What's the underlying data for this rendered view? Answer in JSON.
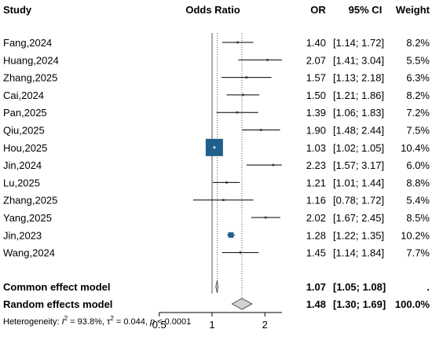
{
  "chart_data": {
    "type": "forest",
    "headers": {
      "study": "Study",
      "plot": "Odds Ratio",
      "or": "OR",
      "ci": "95% CI",
      "weight": "Weight"
    },
    "x_axis": {
      "scale": "log",
      "ticks": [
        0.5,
        1,
        2
      ],
      "tick_labels": [
        "0.5",
        "1",
        "2"
      ],
      "range": [
        0.5,
        2.5
      ]
    },
    "reference_line": 1,
    "studies": [
      {
        "study": "Fang,2024",
        "or": 1.4,
        "lower": 1.14,
        "upper": 1.72,
        "or_text": "1.40",
        "ci_text": "[1.14; 1.72]",
        "weight": 8.2,
        "weight_text": "8.2%"
      },
      {
        "study": "Huang,2024",
        "or": 2.07,
        "lower": 1.41,
        "upper": 3.04,
        "or_text": "2.07",
        "ci_text": "[1.41; 3.04]",
        "weight": 5.5,
        "weight_text": "5.5%"
      },
      {
        "study": "Zhang,2025",
        "or": 1.57,
        "lower": 1.13,
        "upper": 2.18,
        "or_text": "1.57",
        "ci_text": "[1.13; 2.18]",
        "weight": 6.3,
        "weight_text": "6.3%"
      },
      {
        "study": "Cai,2024",
        "or": 1.5,
        "lower": 1.21,
        "upper": 1.86,
        "or_text": "1.50",
        "ci_text": "[1.21; 1.86]",
        "weight": 8.2,
        "weight_text": "8.2%"
      },
      {
        "study": "Pan,2025",
        "or": 1.39,
        "lower": 1.06,
        "upper": 1.83,
        "or_text": "1.39",
        "ci_text": "[1.06; 1.83]",
        "weight": 7.2,
        "weight_text": "7.2%"
      },
      {
        "study": "Qiu,2025",
        "or": 1.9,
        "lower": 1.48,
        "upper": 2.44,
        "or_text": "1.90",
        "ci_text": "[1.48; 2.44]",
        "weight": 7.5,
        "weight_text": "7.5%"
      },
      {
        "study": "Hou,2025",
        "or": 1.03,
        "lower": 1.02,
        "upper": 1.05,
        "or_text": "1.03",
        "ci_text": "[1.02; 1.05]",
        "weight": 10.4,
        "weight_text": "10.4%"
      },
      {
        "study": "Jin,2024",
        "or": 2.23,
        "lower": 1.57,
        "upper": 3.17,
        "or_text": "2.23",
        "ci_text": "[1.57; 3.17]",
        "weight": 6.0,
        "weight_text": "6.0%"
      },
      {
        "study": "Lu,2025",
        "or": 1.21,
        "lower": 1.01,
        "upper": 1.44,
        "or_text": "1.21",
        "ci_text": "[1.01; 1.44]",
        "weight": 8.8,
        "weight_text": "8.8%"
      },
      {
        "study": "Zhang,2025",
        "or": 1.16,
        "lower": 0.78,
        "upper": 1.72,
        "or_text": "1.16",
        "ci_text": "[0.78; 1.72]",
        "weight": 5.4,
        "weight_text": "5.4%"
      },
      {
        "study": "Yang,2025",
        "or": 2.02,
        "lower": 1.67,
        "upper": 2.45,
        "or_text": "2.02",
        "ci_text": "[1.67; 2.45]",
        "weight": 8.5,
        "weight_text": "8.5%"
      },
      {
        "study": "Jin,2023",
        "or": 1.28,
        "lower": 1.22,
        "upper": 1.35,
        "or_text": "1.28",
        "ci_text": "[1.22; 1.35]",
        "weight": 10.2,
        "weight_text": "10.2%"
      },
      {
        "study": "Wang,2024",
        "or": 1.45,
        "lower": 1.14,
        "upper": 1.84,
        "or_text": "1.45",
        "ci_text": "[1.14; 1.84]",
        "weight": 7.7,
        "weight_text": "7.7%"
      }
    ],
    "summaries": [
      {
        "label": "Common effect model",
        "or": 1.07,
        "lower": 1.05,
        "upper": 1.08,
        "or_text": "1.07",
        "ci_text": "[1.05; 1.08]",
        "weight_text": "."
      },
      {
        "label": "Random effects model",
        "or": 1.48,
        "lower": 1.3,
        "upper": 1.69,
        "or_text": "1.48",
        "ci_text": "[1.30; 1.69]",
        "weight_text": "100.0%"
      }
    ],
    "heterogeneity": {
      "prefix": "Heterogeneity: ",
      "i2_symbol": "I",
      "i2_exp": "2",
      "i2_value": " = 93.8%, ",
      "tau_symbol": "τ",
      "tau_exp": "2",
      "tau_value": " = 0.044, ",
      "p_symbol": "p",
      "p_value": " < 0.0001"
    },
    "colors": {
      "box_large": "#1f5f8b",
      "box_small": "#333333",
      "line": "#000000",
      "reference": "#555555",
      "diamond_fill": "#d3d3d3",
      "diamond_stroke": "#555555"
    }
  }
}
